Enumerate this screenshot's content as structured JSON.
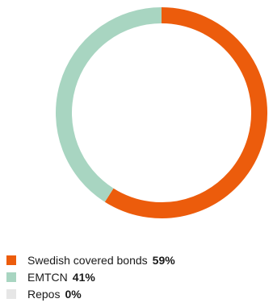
{
  "chart_data": {
    "type": "pie",
    "donut": true,
    "legend_position": "bottom-left",
    "categories": [
      "Swedish covered bonds",
      "EMTCN",
      "Repos"
    ],
    "values": [
      59,
      41,
      0
    ],
    "value_labels": [
      "59%",
      "41%",
      "0%"
    ],
    "colors": [
      "#EC5C0C",
      "#A8D5C1",
      "#E6E6E6"
    ]
  }
}
